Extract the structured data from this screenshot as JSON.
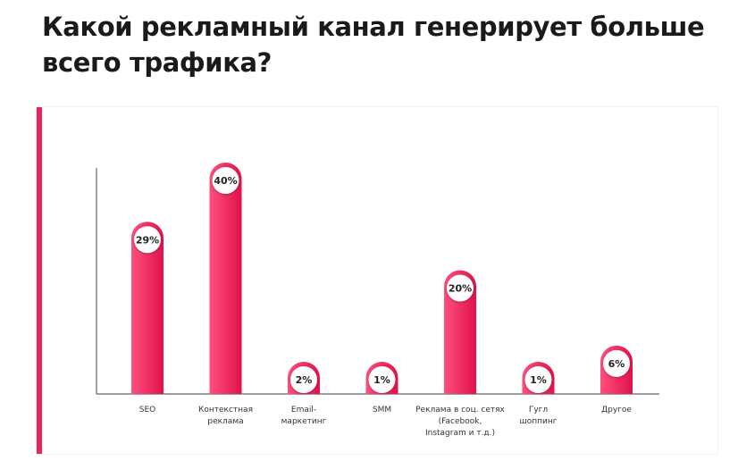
{
  "page": {
    "title": "Какой рекламный канал генерирует больше всего трафика?"
  },
  "colors": {
    "accent": "#e8245a",
    "bar_light": "#ff4f7e",
    "bar_dark": "#e0124a",
    "axis": "#666666"
  },
  "chart_data": {
    "type": "bar",
    "categories": [
      [
        "SEO"
      ],
      [
        "Контекстная",
        "реклама"
      ],
      [
        "Email-",
        "маркетинг"
      ],
      [
        "SMM"
      ],
      [
        "Реклама в соц. сетях",
        "(Facebook,",
        "Instagram и т.д.)"
      ],
      [
        "Гугл",
        "шоппинг"
      ],
      [
        "Другое"
      ]
    ],
    "values": [
      29,
      40,
      2,
      1,
      20,
      1,
      6
    ],
    "value_labels": [
      "29%",
      "40%",
      "2%",
      "1%",
      "20%",
      "1%",
      "6%"
    ],
    "ylim": [
      0,
      40
    ],
    "grid": false,
    "legend": "none"
  }
}
